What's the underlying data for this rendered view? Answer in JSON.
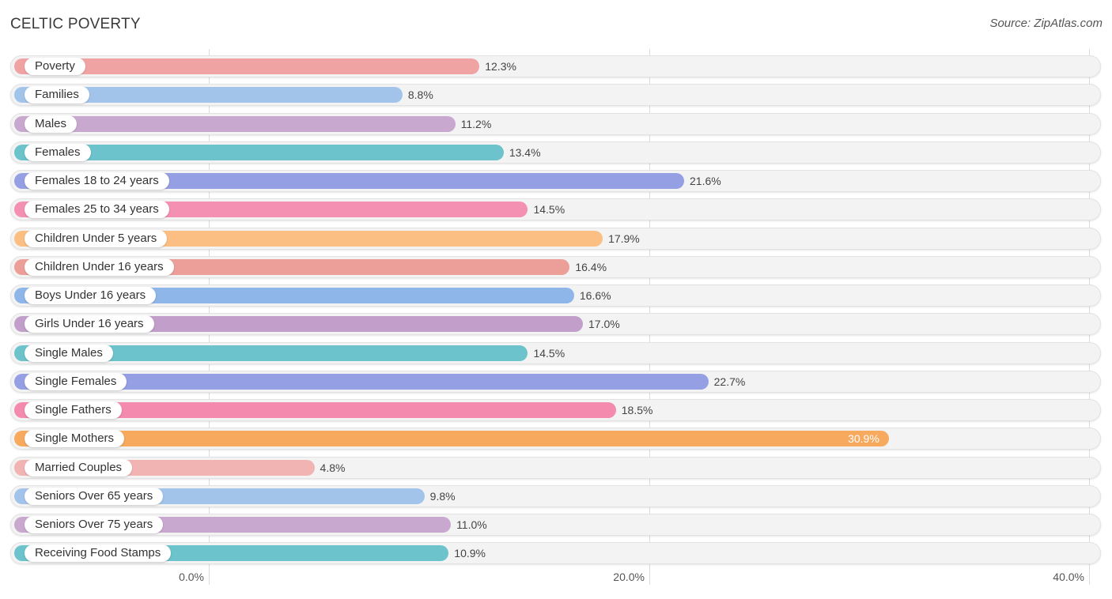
{
  "header": {
    "title": "CELTIC POVERTY",
    "source": "Source: ZipAtlas.com"
  },
  "chart_data": {
    "type": "bar",
    "orientation": "horizontal",
    "title": "CELTIC POVERTY",
    "xlim": [
      0,
      40
    ],
    "ticks": [
      {
        "value": 0,
        "label": "0.0%"
      },
      {
        "value": 20,
        "label": "20.0%"
      },
      {
        "value": 40,
        "label": "40.0%"
      }
    ],
    "grid": true,
    "categories": [
      "Poverty",
      "Families",
      "Males",
      "Females",
      "Females 18 to 24 years",
      "Females 25 to 34 years",
      "Children Under 5 years",
      "Children Under 16 years",
      "Boys Under 16 years",
      "Girls Under 16 years",
      "Single Males",
      "Single Females",
      "Single Fathers",
      "Single Mothers",
      "Married Couples",
      "Seniors Over 65 years",
      "Seniors Over 75 years",
      "Receiving Food Stamps"
    ],
    "values": [
      12.3,
      8.8,
      11.2,
      13.4,
      21.6,
      14.5,
      17.9,
      16.4,
      16.6,
      17.0,
      14.5,
      22.7,
      18.5,
      30.9,
      4.8,
      9.8,
      11.0,
      10.9
    ],
    "value_labels": [
      "12.3%",
      "8.8%",
      "11.2%",
      "13.4%",
      "21.6%",
      "14.5%",
      "17.9%",
      "16.4%",
      "16.6%",
      "17.0%",
      "14.5%",
      "22.7%",
      "18.5%",
      "30.9%",
      "4.8%",
      "9.8%",
      "11.0%",
      "10.9%"
    ],
    "colors": [
      "#f0a3a3",
      "#a3c4ea",
      "#c9a8d0",
      "#6cc3cb",
      "#959fe3",
      "#f490b2",
      "#fbbf84",
      "#ec9f98",
      "#8eb6e8",
      "#c19fca",
      "#6cc3cb",
      "#959fe3",
      "#f48aae",
      "#f7a95e",
      "#f2b3b3",
      "#a3c4ea",
      "#c9a8d0",
      "#6cc3cb"
    ]
  }
}
